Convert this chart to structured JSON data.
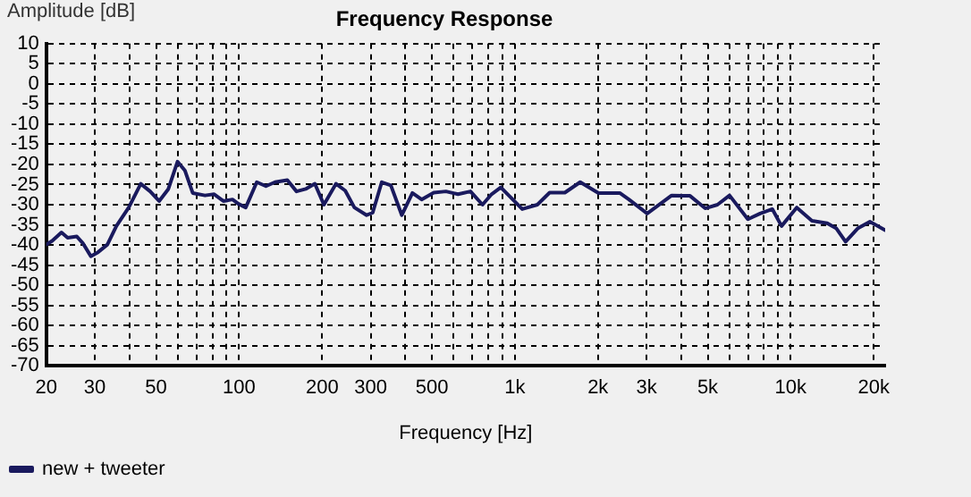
{
  "chart_data": {
    "type": "line",
    "title": "Frequency Response",
    "xlabel": "Frequency [Hz]",
    "ylabel": "Amplitude [dB]",
    "log": "x",
    "grid": true,
    "legend": "bottom left",
    "marker": "none",
    "line_style": "solid",
    "xlim": [
      20,
      22000
    ],
    "ylim": [
      -70,
      10
    ],
    "xticks": [
      20,
      30,
      {
        "value": 40,
        "label": null
      },
      50,
      {
        "value": 60,
        "label": null
      },
      {
        "value": 70,
        "label": null
      },
      {
        "value": 80,
        "label": null
      },
      {
        "value": 90,
        "label": null
      },
      100,
      200,
      300,
      {
        "value": 400,
        "label": null
      },
      500,
      {
        "value": 600,
        "label": null
      },
      {
        "value": 700,
        "label": null
      },
      {
        "value": 800,
        "label": null
      },
      {
        "value": 900,
        "label": null
      },
      {
        "value": 1000,
        "label": "1k"
      },
      {
        "value": 2000,
        "label": "2k"
      },
      {
        "value": 3000,
        "label": "3k"
      },
      {
        "value": 4000,
        "label": null
      },
      {
        "value": 5000,
        "label": "5k"
      },
      {
        "value": 6000,
        "label": null
      },
      {
        "value": 7000,
        "label": null
      },
      {
        "value": 8000,
        "label": null
      },
      {
        "value": 9000,
        "label": null
      },
      {
        "value": 10000,
        "label": "10k"
      },
      {
        "value": 20000,
        "label": "20k"
      }
    ],
    "yticks": [
      -70,
      -65,
      -60,
      -55,
      -50,
      -45,
      -40,
      -35,
      -30,
      -25,
      -20,
      -15,
      -10,
      -5,
      0,
      5,
      10
    ],
    "series": [
      {
        "name": "new + tweeter",
        "color": "#1a1a5e",
        "x": [
          20,
          21,
          22.7,
          23.9,
          25.8,
          27.1,
          29,
          30.8,
          33.3,
          35.9,
          39.8,
          44,
          47.6,
          51.3,
          55.4,
          59.8,
          63.6,
          67.9,
          75.2,
          81.2,
          87.7,
          94.6,
          99.5,
          105.7,
          115.9,
          125.1,
          135,
          149.6,
          161.5,
          174.3,
          188.2,
          203,
          224.6,
          242.5,
          261.8,
          290,
          305,
          329,
          355,
          389,
          425,
          459,
          508,
          562,
          622,
          690,
          763,
          823,
          889,
          1063,
          1206,
          1336,
          1517,
          1725,
          2009,
          2400,
          2590,
          3017,
          3701,
          4314,
          4896,
          5425,
          6000,
          6993,
          7744,
          8580,
          9263,
          10515,
          11937,
          13566,
          14640,
          15810,
          17487,
          19370,
          21980
        ],
        "values": [
          -39.9,
          -39,
          -36.9,
          -38.2,
          -37.9,
          -39.5,
          -42.8,
          -41.8,
          -39.9,
          -35.3,
          -30.7,
          -24.8,
          -26.7,
          -29.1,
          -26.1,
          -19.3,
          -21.5,
          -27.1,
          -27.7,
          -27.4,
          -29.1,
          -28.7,
          -29.8,
          -30.7,
          -24.4,
          -25.4,
          -24.4,
          -23.9,
          -26.7,
          -26.1,
          -24.8,
          -30,
          -24.8,
          -26.5,
          -30.7,
          -32.6,
          -32,
          -24.4,
          -25.2,
          -32.6,
          -27.1,
          -28.7,
          -27,
          -26.7,
          -27.4,
          -26.7,
          -30,
          -27.4,
          -25.7,
          -31.1,
          -30,
          -27,
          -27,
          -24.4,
          -27.1,
          -27.1,
          -28.7,
          -32.2,
          -27.7,
          -27.8,
          -30.9,
          -30,
          -27.7,
          -33.6,
          -32.2,
          -31.1,
          -35.3,
          -30.7,
          -34,
          -34.6,
          -35.9,
          -39.2,
          -35.9,
          -34.2,
          -36.3
        ]
      }
    ]
  }
}
